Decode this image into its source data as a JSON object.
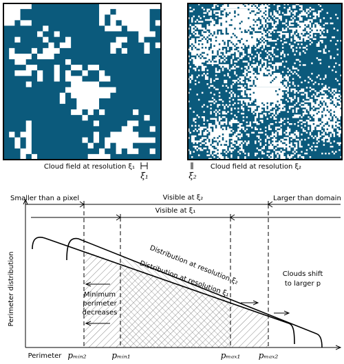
{
  "panels": [
    {
      "caption": "Cloud field at resolution ξ₁",
      "scale_label": "ξ₁"
    },
    {
      "caption": "Cloud field at resolution ξ₂",
      "scale_label": "ξ₂"
    }
  ],
  "plot": {
    "y_label": "Perimeter distribution",
    "x_label": "Perimeter",
    "smaller": "Smaller than a pixel",
    "larger": "Larger than domain",
    "visible_2": "Visible at ξ₂",
    "visible_1": "Visible at ξ₁",
    "dist_2": "Distribution at resolution ξ₂",
    "dist_1": "Distribution at resolution ξ₁",
    "min_note": [
      "Minimum",
      "perimeter",
      "decreases"
    ],
    "shift_note": [
      "Clouds shift",
      "to larger p"
    ],
    "x_marks": [
      "pₘᵢₙ₂",
      "pₘᵢₙ₁",
      "pₘₐₓ₁",
      "pₘₐₓ₂"
    ]
  }
}
